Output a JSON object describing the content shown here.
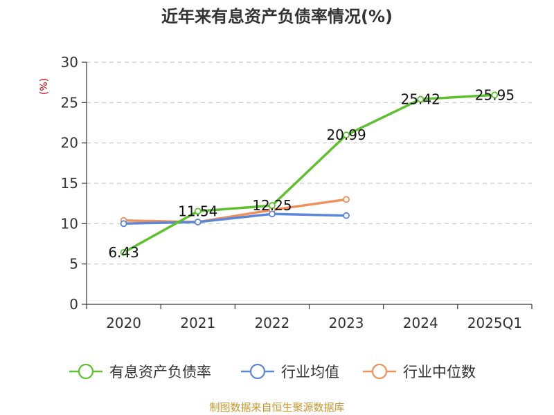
{
  "title": "近年来有息资产负债率情况(%)",
  "source": "制图数据来自恒生聚源数据库",
  "chart_data": {
    "type": "line",
    "ylabel": "(%)",
    "ylim": [
      0,
      30
    ],
    "yticks": [
      0,
      5,
      10,
      15,
      20,
      25,
      30
    ],
    "grid": true,
    "legend_position": "bottom",
    "categories": [
      "2020",
      "2021",
      "2022",
      "2023",
      "2024",
      "2025Q1"
    ],
    "series": [
      {
        "name": "有息资产负债率",
        "color": "#5dc12e",
        "values": [
          6.43,
          11.54,
          12.25,
          20.99,
          25.42,
          25.95
        ],
        "show_labels": true
      },
      {
        "name": "行业均值",
        "color": "#5b87d9",
        "values": [
          10.0,
          10.2,
          11.2,
          11.0,
          null,
          null
        ],
        "show_labels": false
      },
      {
        "name": "行业中位数",
        "color": "#f0905a",
        "values": [
          10.4,
          10.2,
          11.7,
          13.0,
          null,
          null
        ],
        "show_labels": false
      }
    ]
  }
}
